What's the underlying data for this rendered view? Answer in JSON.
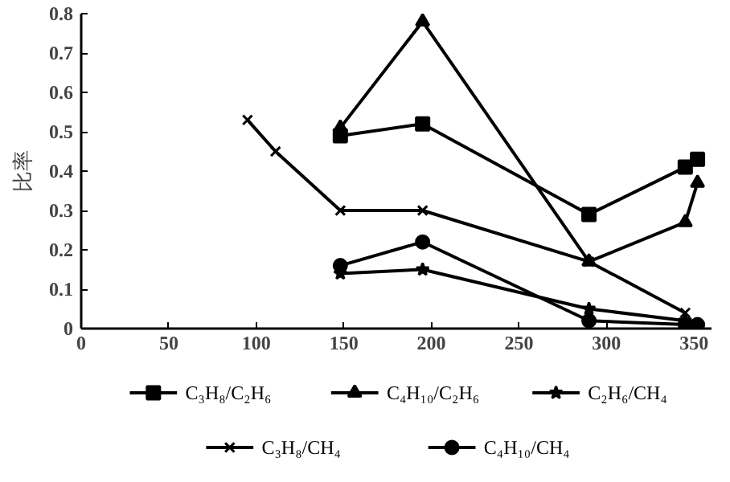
{
  "chart_data": {
    "type": "line",
    "ylabel": "比率",
    "xlim": [
      0,
      360
    ],
    "ylim": [
      0,
      0.8
    ],
    "xticks": [
      0,
      50,
      100,
      150,
      200,
      250,
      300,
      350
    ],
    "yticks": [
      0,
      0.1,
      0.2,
      0.3,
      0.4,
      0.5,
      0.6,
      0.7,
      0.8
    ],
    "grid": false,
    "legend": "bottom",
    "line_style": "solid",
    "series": [
      {
        "name": "C₃H₈/C₂H₆",
        "color": "#000000",
        "marker": "square",
        "x": [
          148,
          195,
          290,
          345,
          352
        ],
        "values": [
          0.49,
          0.52,
          0.29,
          0.41,
          0.43
        ]
      },
      {
        "name": "C₄H₁₀/C₂H₆",
        "color": "#000000",
        "marker": "triangle",
        "x": [
          148,
          195,
          290,
          345,
          352
        ],
        "values": [
          0.51,
          0.78,
          0.17,
          0.27,
          0.37
        ]
      },
      {
        "name": "C₂H₆/CH₄",
        "color": "#000000",
        "marker": "star",
        "x": [
          148,
          195,
          290,
          345
        ],
        "values": [
          0.14,
          0.15,
          0.05,
          0.02
        ]
      },
      {
        "name": "C₃H₈/CH₄",
        "color": "#000000",
        "marker": "cross",
        "x": [
          95,
          111,
          148,
          195,
          290,
          345
        ],
        "values": [
          0.53,
          0.45,
          0.3,
          0.3,
          0.17,
          0.04
        ]
      },
      {
        "name": "C₄H₁₀/CH₄",
        "color": "#000000",
        "marker": "circle",
        "x": [
          148,
          195,
          290,
          345,
          352
        ],
        "values": [
          0.16,
          0.22,
          0.02,
          0.01,
          0.01
        ]
      }
    ]
  }
}
